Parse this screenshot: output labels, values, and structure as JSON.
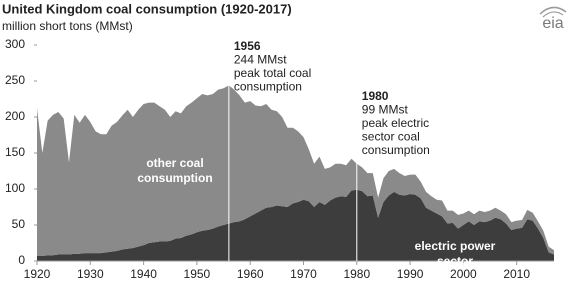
{
  "chart_data": {
    "type": "stacked_area",
    "title": "United Kingdom coal consumption (1920-2017)",
    "subtitle": "million short tons (MMst)",
    "source_logo": "eia",
    "x": [
      1920,
      1921,
      1922,
      1923,
      1924,
      1925,
      1926,
      1927,
      1928,
      1929,
      1930,
      1931,
      1932,
      1933,
      1934,
      1935,
      1936,
      1937,
      1938,
      1939,
      1940,
      1941,
      1942,
      1943,
      1944,
      1945,
      1946,
      1947,
      1948,
      1949,
      1950,
      1951,
      1952,
      1953,
      1954,
      1955,
      1956,
      1957,
      1958,
      1959,
      1960,
      1961,
      1962,
      1963,
      1964,
      1965,
      1966,
      1967,
      1968,
      1969,
      1970,
      1971,
      1972,
      1973,
      1974,
      1975,
      1976,
      1977,
      1978,
      1979,
      1980,
      1981,
      1982,
      1983,
      1984,
      1985,
      1986,
      1987,
      1988,
      1989,
      1990,
      1991,
      1992,
      1993,
      1994,
      1995,
      1996,
      1997,
      1998,
      1999,
      2000,
      2001,
      2002,
      2003,
      2004,
      2005,
      2006,
      2007,
      2008,
      2009,
      2010,
      2011,
      2012,
      2013,
      2014,
      2015,
      2016,
      2017
    ],
    "series": [
      {
        "name": "electric power sector",
        "color": "#3d3d3d",
        "values": [
          7,
          7,
          8,
          8,
          9,
          9,
          9,
          10,
          10,
          11,
          11,
          11,
          11,
          12,
          13,
          14,
          16,
          17,
          18,
          20,
          22,
          25,
          26,
          27,
          27,
          28,
          31,
          32,
          35,
          37,
          40,
          42,
          43,
          45,
          48,
          50,
          52,
          54,
          55,
          58,
          62,
          66,
          70,
          74,
          75,
          77,
          76,
          75,
          80,
          82,
          85,
          83,
          75,
          82,
          78,
          84,
          88,
          90,
          89,
          98,
          99,
          97,
          90,
          91,
          60,
          82,
          91,
          96,
          92,
          91,
          93,
          92,
          87,
          74,
          70,
          66,
          62,
          52,
          53,
          45,
          50,
          55,
          50,
          55,
          54,
          56,
          60,
          58,
          52,
          43,
          45,
          46,
          58,
          56,
          45,
          32,
          12,
          9
        ]
      },
      {
        "name": "other coal consumption",
        "color": "#8a8a8a",
        "values": [
          205,
          143,
          187,
          195,
          198,
          189,
          128,
          193,
          182,
          192,
          182,
          169,
          165,
          164,
          175,
          179,
          186,
          193,
          182,
          190,
          196,
          195,
          194,
          188,
          183,
          172,
          177,
          173,
          180,
          183,
          186,
          190,
          187,
          187,
          190,
          190,
          192,
          184,
          175,
          162,
          160,
          150,
          145,
          144,
          135,
          131,
          124,
          110,
          105,
          98,
          87,
          72,
          60,
          63,
          50,
          46,
          47,
          45,
          44,
          44,
          36,
          33,
          32,
          31,
          28,
          33,
          34,
          32,
          30,
          27,
          27,
          28,
          23,
          22,
          20,
          19,
          22,
          18,
          17,
          19,
          16,
          15,
          15,
          15,
          14,
          14,
          14,
          12,
          13,
          11,
          11,
          11,
          13,
          11,
          10,
          10,
          8,
          6
        ]
      }
    ],
    "xlim": [
      1920,
      2017
    ],
    "xticks": [
      1920,
      1930,
      1940,
      1950,
      1960,
      1970,
      1980,
      1990,
      2000,
      2010
    ],
    "ylim": [
      0,
      300
    ],
    "yticks": [
      0,
      50,
      100,
      150,
      200,
      250,
      300
    ],
    "grid": false,
    "annotations": [
      {
        "x": 1956,
        "lines": [
          "1956",
          "244 MMst",
          "peak total coal",
          "consumption"
        ]
      },
      {
        "x": 1980,
        "lines": [
          "1980",
          "99 MMst",
          "peak electric",
          "sector coal",
          "consumption"
        ]
      }
    ]
  }
}
